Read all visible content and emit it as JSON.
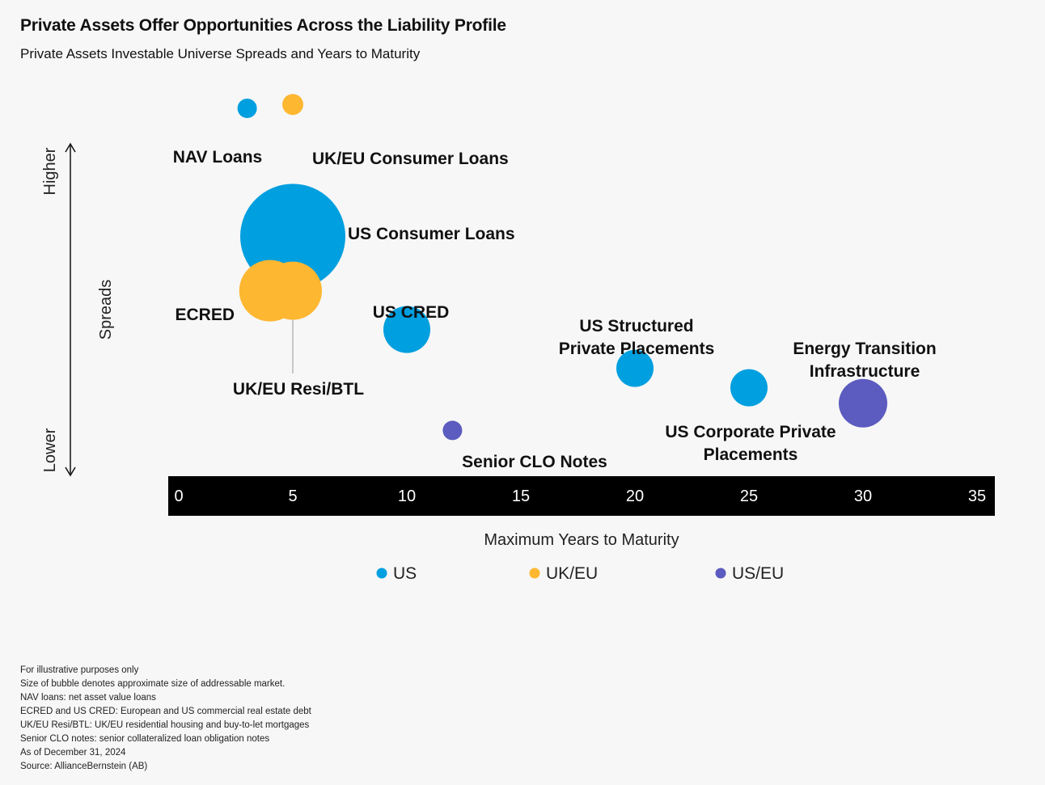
{
  "header": {
    "title": "Private Assets Offer Opportunities Across the Liability Profile",
    "subtitle": "Private Assets Investable Universe Spreads and Years to Maturity"
  },
  "chart_data": {
    "type": "scatter",
    "title": "Private Assets Offer Opportunities Across the Liability Profile",
    "subtitle": "Private Assets Investable Universe Spreads and Years to Maturity",
    "xlabel": "Maximum Years to Maturity",
    "ylabel": "Spreads",
    "y_axis_high": "Higher",
    "y_axis_low": "Lower",
    "xlim": [
      0,
      35
    ],
    "x_ticks": [
      "0",
      "5",
      "10",
      "15",
      "20",
      "25",
      "30",
      "35"
    ],
    "size_note": "Size of bubble denotes approximate size of addressable market.",
    "legend_position": "bottom",
    "legend": [
      {
        "name": "US",
        "color": "#009fdf"
      },
      {
        "name": "UK/EU",
        "color": "#fdb731"
      },
      {
        "name": "US/EU",
        "color": "#5b5bc0"
      }
    ],
    "points": [
      {
        "label": "NAV Loans",
        "group": "US",
        "x": 3,
        "spread": 0.95,
        "size": 12
      },
      {
        "label": "UK/EU  Consumer Loans",
        "group": "UK/EU",
        "x": 5,
        "spread": 0.96,
        "size": 13
      },
      {
        "label": "US Consumer Loans",
        "group": "US",
        "x": 5,
        "spread": 0.62,
        "size": 65
      },
      {
        "label": "ECRED",
        "group": "UK/EU",
        "x": 4,
        "spread": 0.48,
        "size": 38
      },
      {
        "label": "UK/EU Resi/BTL",
        "group": "UK/EU",
        "x": 5,
        "spread": 0.48,
        "size": 36
      },
      {
        "label": "US CRED",
        "group": "US",
        "x": 10,
        "spread": 0.38,
        "size": 29
      },
      {
        "label": "US Structured Private Placements",
        "group": "US",
        "x": 20,
        "spread": 0.28,
        "size": 23
      },
      {
        "label": "US Corporate Private Placements",
        "group": "US",
        "x": 25,
        "spread": 0.23,
        "size": 23
      },
      {
        "label": "Energy Transition Infrastructure",
        "group": "US/EU",
        "x": 30,
        "spread": 0.19,
        "size": 30
      },
      {
        "label": "Senior CLO Notes",
        "group": "US/EU",
        "x": 12,
        "spread": 0.12,
        "size": 12
      }
    ]
  },
  "notes": [
    "For illustrative purposes only",
    "Size of bubble denotes approximate size of addressable market.",
    "NAV loans: net asset value loans",
    "ECRED and US CRED: European and US commercial real estate debt",
    "UK/EU Resi/BTL: UK/EU residential housing and buy-to-let mortgages",
    "Senior CLO notes: senior collateralized loan obligation notes",
    "As of December 31, 2024",
    "Source: AllianceBernstein (AB)"
  ]
}
